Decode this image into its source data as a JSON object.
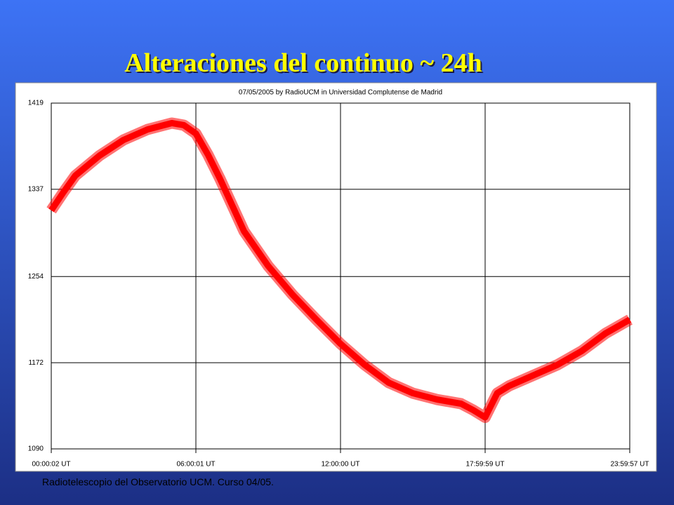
{
  "slide_title": "Alteraciones del continuo ~ 24h",
  "footer": "Radiotelescopio del Observatorio UCM. Curso 04/05.",
  "chart_data": {
    "type": "line",
    "title": "07/05/2005  by  RadioUCM  in  Universidad Complutense de Madrid",
    "x": [
      0,
      0.5,
      1,
      2,
      3,
      4,
      5,
      5.5,
      6,
      6.5,
      7,
      8,
      9,
      10,
      11,
      12,
      13,
      14,
      15,
      16,
      17,
      17.5,
      18,
      18.5,
      19,
      20,
      21,
      22,
      23,
      24
    ],
    "values": [
      1317,
      1334,
      1350,
      1369,
      1384,
      1394,
      1400,
      1398,
      1390,
      1370,
      1347,
      1297,
      1264,
      1237,
      1213,
      1190,
      1170,
      1153,
      1143,
      1137,
      1133,
      1127,
      1120,
      1143,
      1150,
      1160,
      1170,
      1183,
      1200,
      1213
    ],
    "color": "#ff0000",
    "xlim": [
      0,
      24
    ],
    "xticks": [
      {
        "value": 0.0006,
        "label": "00:00:02 UT"
      },
      {
        "value": 6.0003,
        "label": "06:00:01 UT"
      },
      {
        "value": 12,
        "label": "12:00:00 UT"
      },
      {
        "value": 17.9997,
        "label": "17:59:59 UT"
      },
      {
        "value": 23.9992,
        "label": "23:59:57 UT"
      }
    ],
    "ylim": [
      1090,
      1419
    ],
    "yticks": [
      1090,
      1172,
      1254,
      1337,
      1419
    ],
    "grid": true
  }
}
